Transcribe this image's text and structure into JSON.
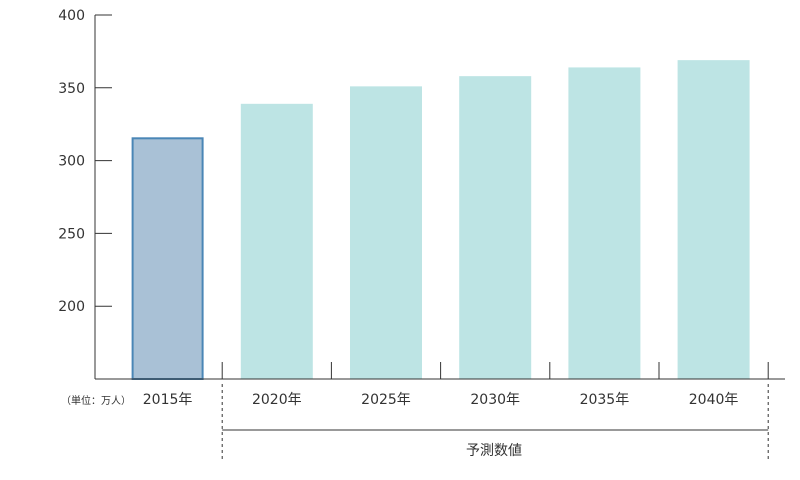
{
  "chart_data": {
    "type": "bar",
    "title": "",
    "xlabel": "",
    "ylabel": "",
    "unit_label": "（単位：万人）",
    "categories": [
      "2015年",
      "2020年",
      "2025年",
      "2030年",
      "2035年",
      "2040年"
    ],
    "values": [
      316,
      339,
      351,
      358,
      364,
      369
    ],
    "bar_colors": [
      "#a9c1d6",
      "#bde4e4",
      "#bde4e4",
      "#bde4e4",
      "#bde4e4",
      "#bde4e4"
    ],
    "bar_stroke_first": "#4a86b6",
    "ylim": [
      150,
      400
    ],
    "yticks": [
      200,
      250,
      300,
      350,
      400
    ],
    "grid": false,
    "forecast_label": "予測数値",
    "forecast_range": [
      "2020年",
      "2040年"
    ]
  }
}
